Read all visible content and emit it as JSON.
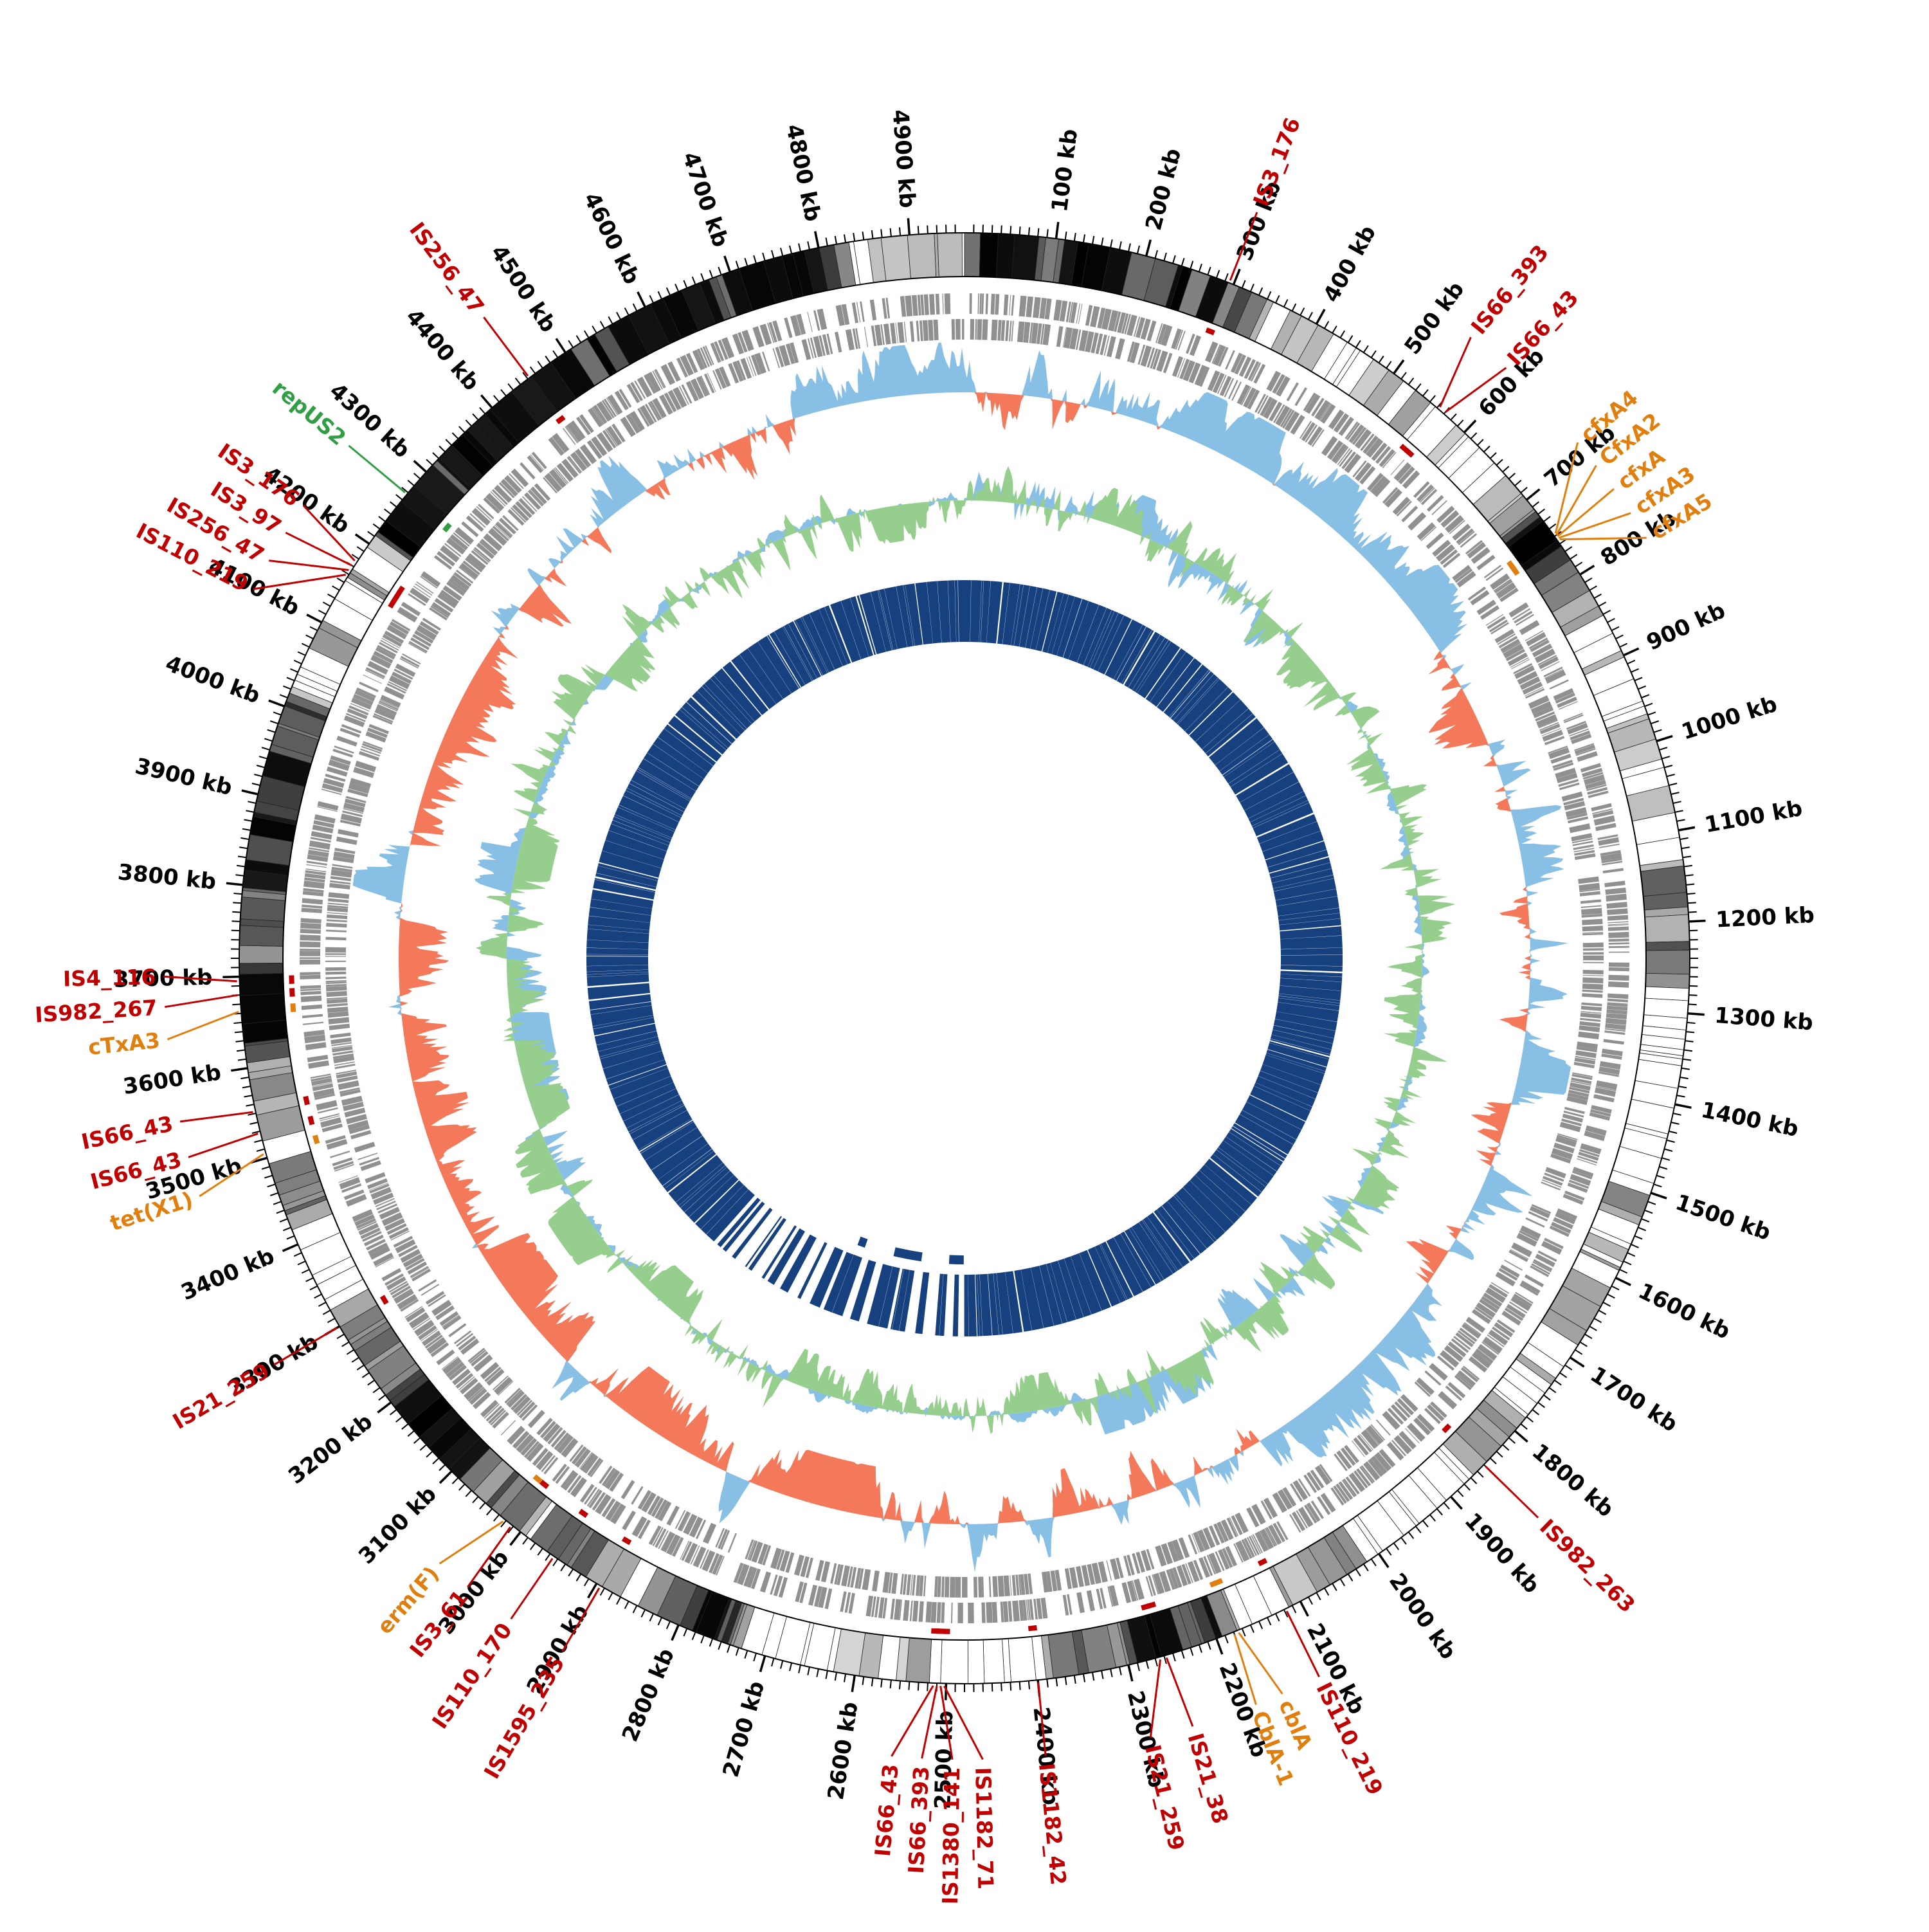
{
  "chart_data": {
    "type": "circular-genome-map",
    "total_kb": 4960,
    "tick_interval_kb": 100,
    "minor_tick_kb": 10,
    "unit": "kb",
    "seed": 11,
    "tick_labels": [
      "100 kb",
      "200 kb",
      "300 kb",
      "400 kb",
      "500 kb",
      "600 kb",
      "700 kb",
      "800 kb",
      "900 kb",
      "1000 kb",
      "1100 kb",
      "1200 kb",
      "1300 kb",
      "1400 kb",
      "1500 kb",
      "1600 kb",
      "1700 kb",
      "1800 kb",
      "1900 kb",
      "2000 kb",
      "2100 kb",
      "2200 kb",
      "2300 kb",
      "2400 kb",
      "2500 kb",
      "2600 kb",
      "2700 kb",
      "2800 kb",
      "2900 kb",
      "3000 kb",
      "3100 kb",
      "3200 kb",
      "3300 kb",
      "3400 kb",
      "3500 kb",
      "3600 kb",
      "3700 kb",
      "3800 kb",
      "3900 kb",
      "4000 kb",
      "4100 kb",
      "4200 kb",
      "4300 kb",
      "4400 kb",
      "4500 kb",
      "4600 kb",
      "4700 kb",
      "4800 kb",
      "4900 kb"
    ],
    "palette": {
      "red": "#c00000",
      "orange": "#e07f0e",
      "green": "#2f9e44",
      "navy": "#17407f",
      "salmon": "#f4795b",
      "light_blue": "#88bfe4",
      "light_green": "#96cf8d",
      "cds_gray": "#909090",
      "tick_black": "#000000"
    },
    "rings": [
      {
        "name": "contig-shading",
        "style": "grayscale-blocks"
      },
      {
        "name": "cds-forward",
        "color_key": "cds_gray"
      },
      {
        "name": "cds-reverse",
        "color_key": "cds_gray"
      },
      {
        "name": "skew-plot",
        "positive_color_key": "light_blue",
        "negative_color_key": "salmon"
      },
      {
        "name": "content-plot",
        "color_key": "light_green",
        "secondary_color_key": "light_blue"
      },
      {
        "name": "coverage-ring",
        "color_key": "navy"
      }
    ],
    "annotations": [
      {
        "text": "IS3_176",
        "kb": 295,
        "label_kb": 295,
        "color": "red"
      },
      {
        "text": "IS66_393",
        "kb": 562,
        "label_kb": 540,
        "color": "red"
      },
      {
        "text": "IS66_43",
        "kb": 570,
        "label_kb": 586,
        "color": "red"
      },
      {
        "text": "cfxA4",
        "kb": 748,
        "label_kb": 688,
        "color": "orange"
      },
      {
        "text": "CfxA2",
        "kb": 750,
        "label_kb": 717,
        "color": "orange"
      },
      {
        "text": "cfxA",
        "kb": 752,
        "label_kb": 746,
        "color": "orange"
      },
      {
        "text": "cfxA3",
        "kb": 754,
        "label_kb": 775,
        "color": "orange"
      },
      {
        "text": "cfxA5",
        "kb": 756,
        "label_kb": 804,
        "color": "orange"
      },
      {
        "text": "IS982_263",
        "kb": 1850,
        "label_kb": 1850,
        "color": "red"
      },
      {
        "text": "IS110_219",
        "kb": 2118,
        "label_kb": 2118,
        "color": "red"
      },
      {
        "text": "cblA",
        "kb": 2175,
        "label_kb": 2158,
        "color": "orange"
      },
      {
        "text": "CblA-1",
        "kb": 2180,
        "label_kb": 2186,
        "color": "orange"
      },
      {
        "text": "IS21_38",
        "kb": 2258,
        "label_kb": 2252,
        "color": "red"
      },
      {
        "text": "IS21_259",
        "kb": 2265,
        "label_kb": 2295,
        "color": "red"
      },
      {
        "text": "IS1182_42",
        "kb": 2400,
        "label_kb": 2400,
        "color": "red"
      },
      {
        "text": "IS1182_71",
        "kb": 2502,
        "label_kb": 2462,
        "color": "red"
      },
      {
        "text": "IS1380_141",
        "kb": 2506,
        "label_kb": 2492,
        "color": "red"
      },
      {
        "text": "IS66_393",
        "kb": 2510,
        "label_kb": 2522,
        "color": "red"
      },
      {
        "text": "IS66_43",
        "kb": 2514,
        "label_kb": 2552,
        "color": "red"
      },
      {
        "text": "IS1595_235",
        "kb": 2895,
        "label_kb": 2895,
        "color": "red"
      },
      {
        "text": "IS110_170",
        "kb": 2955,
        "label_kb": 2955,
        "color": "red"
      },
      {
        "text": "IS3_61",
        "kb": 3012,
        "label_kb": 3008,
        "color": "red"
      },
      {
        "text": "erm(F)",
        "kb": 3022,
        "label_kb": 3044,
        "color": "orange"
      },
      {
        "text": "IS21_259",
        "kb": 3300,
        "label_kb": 3300,
        "color": "red"
      },
      {
        "text": "tet(X1)",
        "kb": 3505,
        "label_kb": 3482,
        "color": "orange"
      },
      {
        "text": "IS66_43",
        "kb": 3528,
        "label_kb": 3522,
        "color": "red"
      },
      {
        "text": "IS66_43",
        "kb": 3552,
        "label_kb": 3558,
        "color": "red"
      },
      {
        "text": "cTxA3",
        "kb": 3662,
        "label_kb": 3640,
        "color": "orange"
      },
      {
        "text": "IS982_267",
        "kb": 3680,
        "label_kb": 3672,
        "color": "red"
      },
      {
        "text": "IS4_116",
        "kb": 3695,
        "label_kb": 3702,
        "color": "red"
      },
      {
        "text": "IS110_219",
        "kb": 4158,
        "label_kb": 4098,
        "color": "red"
      },
      {
        "text": "IS256_47",
        "kb": 4164,
        "label_kb": 4130,
        "color": "red"
      },
      {
        "text": "IS3_97",
        "kb": 4170,
        "label_kb": 4162,
        "color": "red"
      },
      {
        "text": "IS3_176",
        "kb": 4176,
        "label_kb": 4194,
        "color": "red"
      },
      {
        "text": "repUS2",
        "kb": 4268,
        "label_kb": 4268,
        "color": "green"
      },
      {
        "text": "IS256_47",
        "kb": 4452,
        "label_kb": 4452,
        "color": "red"
      }
    ]
  }
}
